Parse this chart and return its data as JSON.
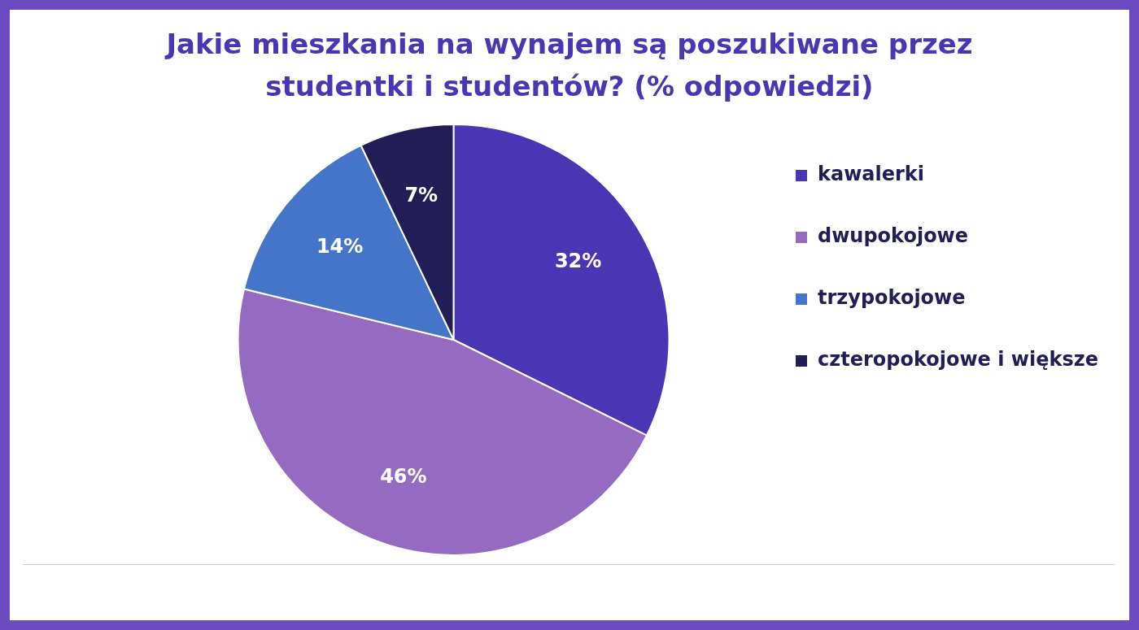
{
  "chart_data": {
    "type": "pie",
    "title": "Jakie mieszkania na wynajem są poszukiwane przez studentki i studentów? (% odpowiedzi)",
    "categories": [
      "kawalerki",
      "dwupokojowe",
      "trzypokojowe",
      "czteropokojowe i większe"
    ],
    "values": [
      32,
      46,
      14,
      7
    ],
    "colors": [
      "#4a35b5",
      "#946bc0",
      "#4575c8",
      "#231d57"
    ],
    "value_labels": [
      "32%",
      "46%",
      "14%",
      "7%"
    ],
    "legend": "right"
  }
}
